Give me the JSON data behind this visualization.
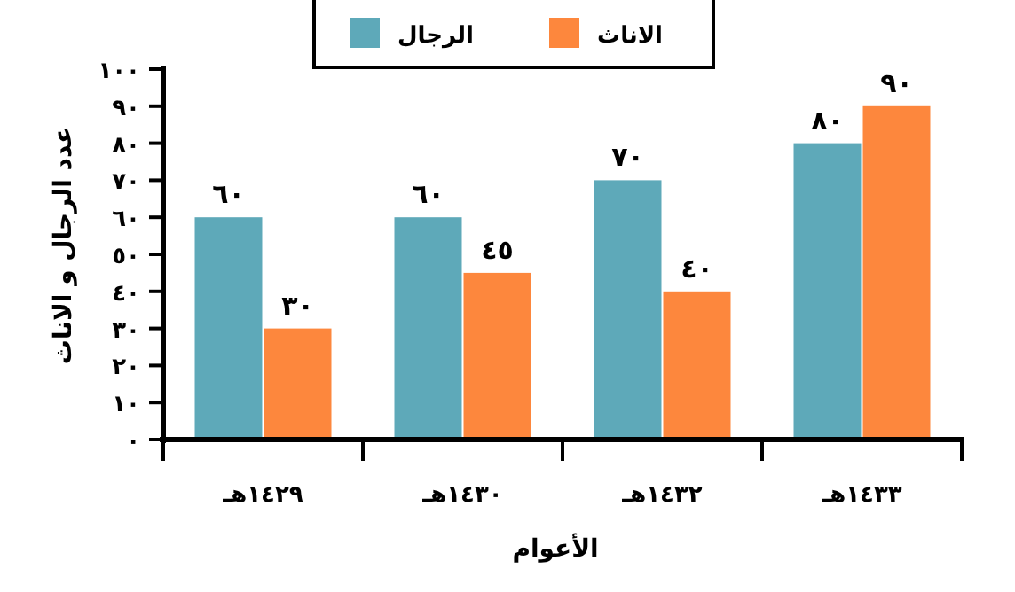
{
  "chart_data": {
    "type": "bar",
    "xlabel": "الأعوام",
    "ylabel": "عدد الرجال و الاناث",
    "categories": [
      "١٤٢٩هـ",
      "١٤٣٠هـ",
      "١٤٣٢هـ",
      "١٤٣٣هـ"
    ],
    "series": [
      {
        "name": "الرجال",
        "color": "#5ea9b9",
        "values": [
          60,
          60,
          70,
          80
        ],
        "value_labels": [
          "٦٠",
          "٦٠",
          "٧٠",
          "٨٠"
        ]
      },
      {
        "name": "الاناث",
        "color": "#fd873d",
        "values": [
          30,
          45,
          40,
          90
        ],
        "value_labels": [
          "٣٠",
          "٤٥",
          "٤٠",
          "٩٠"
        ]
      }
    ],
    "ylim": [
      0,
      100
    ],
    "yticks": [
      {
        "value": 0,
        "label": "٠"
      },
      {
        "value": 10,
        "label": "١٠"
      },
      {
        "value": 20,
        "label": "٢٠"
      },
      {
        "value": 30,
        "label": "٣٠"
      },
      {
        "value": 40,
        "label": "٤٠"
      },
      {
        "value": 50,
        "label": "٥٠"
      },
      {
        "value": 60,
        "label": "٦٠"
      },
      {
        "value": 70,
        "label": "٧٠"
      },
      {
        "value": 80,
        "label": "٨٠"
      },
      {
        "value": 90,
        "label": "٩٠"
      },
      {
        "value": 100,
        "label": "١٠٠"
      }
    ],
    "legend": "top"
  }
}
